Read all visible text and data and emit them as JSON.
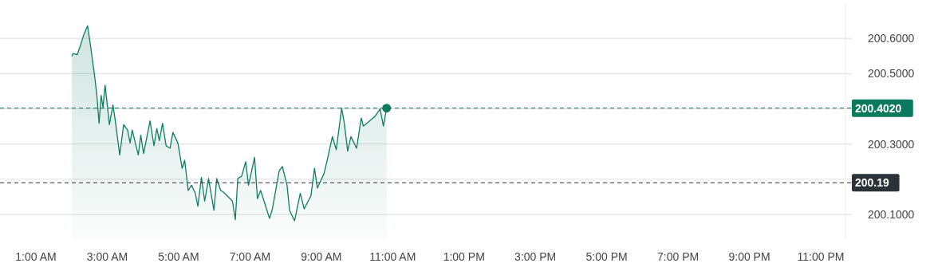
{
  "chart_data": {
    "type": "area",
    "x": [
      2.01,
      2.04,
      2.16,
      2.27,
      2.34,
      2.45,
      2.53,
      2.64,
      2.71,
      2.77,
      2.83,
      2.88,
      2.94,
      3.01,
      3.06,
      3.16,
      3.23,
      3.35,
      3.46,
      3.57,
      3.64,
      3.7,
      3.87,
      3.94,
      4.02,
      4.2,
      4.31,
      4.39,
      4.46,
      4.55,
      4.65,
      4.76,
      4.84,
      4.98,
      5.1,
      5.17,
      5.27,
      5.36,
      5.47,
      5.54,
      5.64,
      5.73,
      5.84,
      5.92,
      5.99,
      6.07,
      6.18,
      6.25,
      6.51,
      6.59,
      6.66,
      6.77,
      6.88,
      6.96,
      7.13,
      7.21,
      7.3,
      7.55,
      7.63,
      7.82,
      7.91,
      8.04,
      8.11,
      8.25,
      8.41,
      8.52,
      8.71,
      8.81,
      8.89,
      9.08,
      9.19,
      9.31,
      9.42,
      9.57,
      9.64,
      9.74,
      9.83,
      9.9,
      9.99,
      10.12,
      10.18,
      10.5,
      10.65,
      10.74,
      10.83
    ],
    "series": [
      {
        "color": "#0e7c61",
        "values": [
          200.55,
          200.557,
          200.554,
          200.587,
          200.61,
          200.636,
          200.58,
          200.498,
          200.438,
          200.359,
          200.438,
          200.404,
          200.467,
          200.404,
          200.355,
          200.411,
          200.363,
          200.269,
          200.355,
          200.34,
          200.303,
          200.34,
          200.269,
          200.325,
          200.273,
          200.366,
          200.295,
          200.344,
          200.31,
          200.359,
          200.295,
          200.288,
          200.333,
          200.303,
          200.231,
          200.254,
          200.168,
          200.183,
          200.16,
          200.123,
          200.205,
          200.138,
          200.202,
          200.153,
          200.112,
          200.202,
          200.168,
          200.164,
          200.138,
          200.085,
          200.202,
          200.209,
          200.25,
          200.183,
          200.262,
          200.145,
          200.168,
          200.089,
          200.116,
          200.224,
          200.236,
          200.183,
          200.112,
          200.082,
          200.16,
          200.116,
          200.153,
          200.231,
          200.175,
          200.217,
          200.265,
          200.321,
          200.284,
          200.402,
          200.363,
          200.28,
          200.321,
          200.307,
          200.288,
          200.374,
          200.351,
          200.378,
          200.4,
          200.351,
          200.402
        ]
      },
      {
        "type": "scatter",
        "color": "#0e7c61",
        "marker": "circle",
        "x": [
          10.83
        ],
        "values": [
          200.402
        ]
      }
    ],
    "xticks": [
      {
        "value": 1,
        "label": "1:00 AM"
      },
      {
        "value": 3,
        "label": "3:00 AM"
      },
      {
        "value": 5,
        "label": "5:00 AM"
      },
      {
        "value": 7,
        "label": "7:00 AM"
      },
      {
        "value": 9,
        "label": "9:00 AM"
      },
      {
        "value": 11,
        "label": "11:00 AM"
      },
      {
        "value": 13,
        "label": "1:00 PM"
      },
      {
        "value": 15,
        "label": "3:00 PM"
      },
      {
        "value": 17,
        "label": "5:00 PM"
      },
      {
        "value": 19,
        "label": "7:00 PM"
      },
      {
        "value": 21,
        "label": "9:00 PM"
      },
      {
        "value": 23,
        "label": "11:00 PM"
      }
    ],
    "yticks": [
      {
        "value": 200.1,
        "label": "200.1000"
      },
      {
        "value": 200.2,
        "label": null
      },
      {
        "value": 200.3,
        "label": "200.3000"
      },
      {
        "value": 200.4,
        "label": null
      },
      {
        "value": 200.5,
        "label": "200.5000"
      },
      {
        "value": 200.6,
        "label": "200.6000"
      }
    ],
    "xlim": [
      1,
      23
    ],
    "ylim": [
      200.03,
      200.7
    ],
    "grid": "y",
    "ref_lines": [
      {
        "axis": "y",
        "value": 200.402,
        "label": "200.4020",
        "color": "#0b7a5c",
        "line_style": "dashed"
      },
      {
        "axis": "y",
        "value": 200.19,
        "label": "200.19",
        "color": "#2b3338",
        "line_style": "dashed"
      }
    ]
  }
}
